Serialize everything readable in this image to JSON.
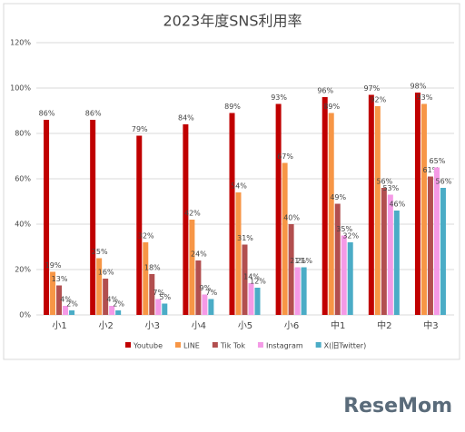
{
  "chart_data": {
    "type": "bar",
    "title": "2023年度SNS利用率",
    "categories": [
      "小1",
      "小2",
      "小3",
      "小4",
      "小5",
      "小6",
      "中1",
      "中2",
      "中3"
    ],
    "series": [
      {
        "name": "Youtube",
        "color": "#c00000",
        "values": [
          86,
          86,
          79,
          84,
          89,
          93,
          96,
          97,
          98
        ],
        "value_labels": [
          "86%",
          "86%",
          "79%",
          "84%",
          "89%",
          "93%",
          "96%",
          "97%",
          "98%"
        ]
      },
      {
        "name": "LINE",
        "color": "#f79646",
        "values": [
          19,
          25,
          32,
          42,
          54,
          67,
          89,
          92,
          93
        ],
        "value_labels": [
          "19%",
          "25%",
          "32%",
          "42%",
          "54%",
          "67%",
          "89%",
          "92%",
          "93%"
        ]
      },
      {
        "name": "Tik Tok",
        "color": "#b24f4f",
        "values": [
          13,
          16,
          18,
          24,
          31,
          40,
          49,
          56,
          61
        ],
        "value_labels": [
          "13%",
          "16%",
          "18%",
          "24%",
          "31%",
          "40%",
          "49%",
          "56%",
          "61%"
        ]
      },
      {
        "name": "Instagram",
        "color": "#f49ae6",
        "values": [
          4,
          4,
          7,
          9,
          14,
          21,
          35,
          53,
          65
        ],
        "value_labels": [
          "4%",
          "4%",
          "7%",
          "9%",
          "14%",
          "21%",
          "35%",
          "53%",
          "65%"
        ]
      },
      {
        "name": "X(旧Twitter)",
        "color": "#4bacc6",
        "values": [
          2,
          2,
          5,
          7,
          12,
          21,
          32,
          46,
          56
        ],
        "value_labels": [
          "2%",
          "2%",
          "5%",
          "7%",
          "12%",
          "21%",
          "32%",
          "46%",
          "56%"
        ]
      }
    ],
    "ylim": [
      0,
      120
    ],
    "yticks": [
      {
        "value": 0,
        "label": "0%"
      },
      {
        "value": 20,
        "label": "20%"
      },
      {
        "value": 40,
        "label": "40%"
      },
      {
        "value": 60,
        "label": "60%"
      },
      {
        "value": 80,
        "label": "80%"
      },
      {
        "value": 100,
        "label": "100%"
      },
      {
        "value": 120,
        "label": "120%"
      }
    ],
    "grid": true,
    "legend": "bottom"
  },
  "watermark": "ReseMom"
}
